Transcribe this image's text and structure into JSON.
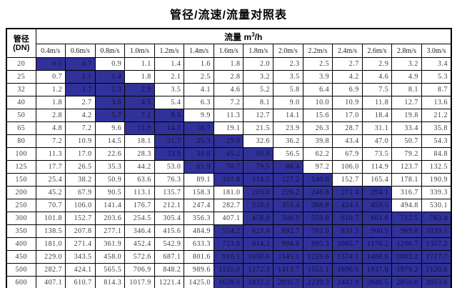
{
  "title": "管径/流速/流量对照表",
  "colors": {
    "highlight_bg": "#31319a",
    "highlight_text": "#10103a",
    "border": "#000000",
    "cell_text": "#3d3d3d"
  },
  "table": {
    "corner": {
      "line1": "管径",
      "line2": "(DN)"
    },
    "flow_label": "流量",
    "flow_unit": {
      "base": "m",
      "sup": "3",
      "rest": "/h"
    },
    "velocity_headers": [
      "0.4m/s",
      "0.6m/s",
      "0.8m/s",
      "1.0m/s",
      "1.2m/s",
      "1.4m/s",
      "1.6m/s",
      "1.8m/s",
      "2.0m/s",
      "2.2m/s",
      "2.4m/s",
      "2.6m/s",
      "2.8m/s",
      "3.0m/s"
    ],
    "rows": [
      {
        "dn": "20",
        "values": [
          "0.5",
          "0.7",
          "0.9",
          "1.1",
          "1.4",
          "1.6",
          "1.8",
          "2.0",
          "2.3",
          "2.5",
          "2.7",
          "2.9",
          "3.2",
          "3.4"
        ],
        "highlight": [
          0,
          1
        ]
      },
      {
        "dn": "25",
        "values": [
          "0.7",
          "1.1",
          "1.4",
          "1.8",
          "2.1",
          "2.5",
          "2.8",
          "3.2",
          "3.5",
          "3.9",
          "4.2",
          "4.6",
          "4.9",
          "5.3"
        ],
        "highlight": [
          1,
          2
        ]
      },
      {
        "dn": "32",
        "values": [
          "1.2",
          "1.7",
          "2.3",
          "2.9",
          "3.5",
          "4.1",
          "4.6",
          "5.2",
          "5.8",
          "6.4",
          "6.9",
          "7.5",
          "8.1",
          "8.7"
        ],
        "highlight": [
          1,
          2,
          3
        ]
      },
      {
        "dn": "40",
        "values": [
          "1.8",
          "2.7",
          "3.6",
          "4.5",
          "5.4",
          "6.3",
          "7.2",
          "8.1",
          "9.0",
          "10.0",
          "10.9",
          "11.8",
          "12.7",
          "13.6"
        ],
        "highlight": [
          2,
          3
        ]
      },
      {
        "dn": "50",
        "values": [
          "2.8",
          "4.2",
          "5.7",
          "7.1",
          "8.5",
          "9.9",
          "11.3",
          "12.7",
          "14.1",
          "15.6",
          "17.0",
          "18.4",
          "19.8",
          "21.2"
        ],
        "highlight": [
          2,
          3,
          4
        ]
      },
      {
        "dn": "65",
        "values": [
          "4.8",
          "7.2",
          "9.6",
          "11.9",
          "14.3",
          "16.7",
          "19.1",
          "21.5",
          "23.9",
          "26.3",
          "28.7",
          "31.1",
          "33.4",
          "35.8"
        ],
        "highlight": [
          3,
          4,
          5
        ]
      },
      {
        "dn": "80",
        "values": [
          "7.2",
          "10.9",
          "14.5",
          "18.1",
          "21.7",
          "25.3",
          "29.0",
          "32.6",
          "36.2",
          "39.8",
          "43.4",
          "47.0",
          "50.7",
          "54.3"
        ],
        "highlight": [
          4,
          5,
          6
        ]
      },
      {
        "dn": "100",
        "values": [
          "11.3",
          "17.0",
          "22.6",
          "28.3",
          "33.9",
          "39.6",
          "45.2",
          "50.9",
          "56.5",
          "62.2",
          "67.9",
          "73.5",
          "79.2",
          "84.8"
        ],
        "highlight": [
          4,
          5,
          6,
          7
        ]
      },
      {
        "dn": "125",
        "values": [
          "17.7",
          "26.5",
          "35.3",
          "44.2",
          "53.0",
          "61.9",
          "70.7",
          "79.5",
          "88.4",
          "97.2",
          "106.0",
          "114.9",
          "123.7",
          "132.5"
        ],
        "highlight": [
          5,
          6,
          7,
          8
        ]
      },
      {
        "dn": "150",
        "values": [
          "25.4",
          "38.2",
          "50.9",
          "63.6",
          "76.3",
          "89.1",
          "101.8",
          "114.5",
          "127.2",
          "140.0",
          "152.7",
          "165.4",
          "178.1",
          "190.9"
        ],
        "highlight": [
          6,
          7,
          8,
          9
        ]
      },
      {
        "dn": "200",
        "values": [
          "45.2",
          "67.9",
          "90.5",
          "113.1",
          "135.7",
          "158.3",
          "181.0",
          "203.6",
          "226.2",
          "248.8",
          "271.4",
          "294.1",
          "316.7",
          "339.3"
        ],
        "highlight": [
          7,
          8,
          9,
          10,
          11
        ]
      },
      {
        "dn": "250",
        "values": [
          "70.7",
          "106.0",
          "141.4",
          "176.7",
          "212.1",
          "247.4",
          "282.7",
          "318.1",
          "353.4",
          "388.8",
          "424.1",
          "459.5",
          "494.8",
          "530.1"
        ],
        "highlight": [
          7,
          8,
          9,
          10,
          11
        ]
      },
      {
        "dn": "300",
        "values": [
          "101.8",
          "152.7",
          "203.6",
          "254.5",
          "305.4",
          "356.3",
          "407.1",
          "458.0",
          "508.9",
          "559.8",
          "610.7",
          "661.6",
          "712.5",
          "763.4"
        ],
        "highlight": [
          7,
          8,
          9,
          10,
          11,
          12,
          13
        ]
      },
      {
        "dn": "350",
        "values": [
          "138.5",
          "207.8",
          "277.1",
          "346.4",
          "415.6",
          "484.9",
          "554.2",
          "623.4",
          "692.7",
          "762.0",
          "831.3",
          "900.5",
          "969.8",
          "1039.1"
        ],
        "highlight": [
          6,
          7,
          8,
          9,
          10,
          11,
          12,
          13
        ]
      },
      {
        "dn": "400",
        "values": [
          "181.0",
          "271.4",
          "361.9",
          "452.4",
          "542.9",
          "633.3",
          "723.8",
          "814.3",
          "904.8",
          "995.3",
          "1085.7",
          "1176.2",
          "1266.7",
          "1357.2"
        ],
        "highlight": [
          6,
          7,
          8,
          9,
          10,
          11,
          12,
          13
        ]
      },
      {
        "dn": "450",
        "values": [
          "229.0",
          "343.5",
          "458.0",
          "572.6",
          "687.1",
          "801.6",
          "916.1",
          "1030.6",
          "1145.1",
          "1259.6",
          "1374.1",
          "1488.6",
          "1603.2",
          "1717.7"
        ],
        "highlight": [
          6,
          7,
          8,
          9,
          10,
          11,
          12,
          13
        ]
      },
      {
        "dn": "500",
        "values": [
          "282.7",
          "424.1",
          "565.5",
          "706.9",
          "848.2",
          "989.6",
          "1131.0",
          "1272.3",
          "1413.7",
          "1555.1",
          "1696.5",
          "1837.8",
          "1979.2",
          "2120.6"
        ],
        "highlight": [
          6,
          7,
          8,
          9,
          10,
          11,
          12,
          13
        ]
      },
      {
        "dn": "600",
        "values": [
          "407.1",
          "610.7",
          "814.3",
          "1017.9",
          "1221.4",
          "1425.0",
          "1628.6",
          "1832.2",
          "2035.7",
          "2239.3",
          "2442.9",
          "2646.5",
          "2850.0",
          "3053.6"
        ],
        "highlight": [
          6,
          7,
          8,
          9,
          10,
          11,
          12,
          13
        ]
      }
    ]
  }
}
